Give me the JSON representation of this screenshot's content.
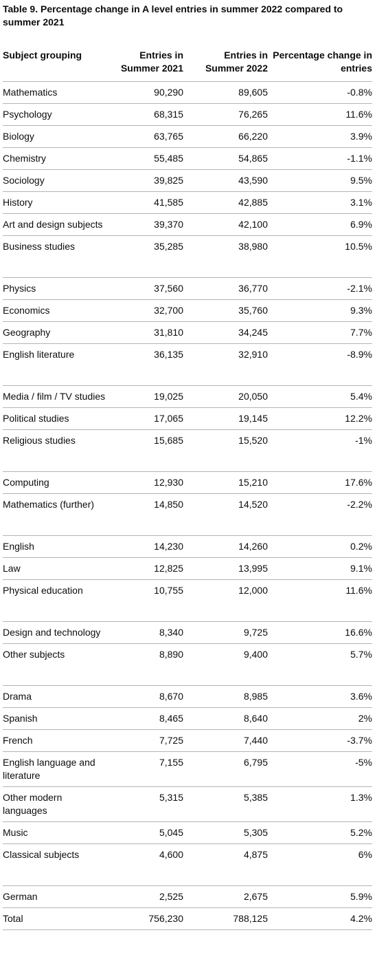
{
  "caption": "Table 9. Percentage change in A level entries in summer 2022 compared to summer 2021",
  "headers": {
    "subject": "Subject grouping",
    "entries_2021": "Entries in Summer 2021",
    "entries_2022": "Entries in Summer 2022",
    "pct_change": "Percentage change in entries"
  },
  "rows": [
    {
      "subject": "Mathematics",
      "e2021": "90,290",
      "e2022": "89,605",
      "pct": "-0.8%"
    },
    {
      "subject": "Psychology",
      "e2021": "68,315",
      "e2022": "76,265",
      "pct": "11.6%"
    },
    {
      "subject": "Biology",
      "e2021": "63,765",
      "e2022": "66,220",
      "pct": "3.9%"
    },
    {
      "subject": "Chemistry",
      "e2021": "55,485",
      "e2022": "54,865",
      "pct": "-1.1%"
    },
    {
      "subject": "Sociology",
      "e2021": "39,825",
      "e2022": "43,590",
      "pct": "9.5%"
    },
    {
      "subject": "History",
      "e2021": "41,585",
      "e2022": "42,885",
      "pct": "3.1%"
    },
    {
      "subject": "Art and design subjects",
      "e2021": "39,370",
      "e2022": "42,100",
      "pct": "6.9%"
    },
    {
      "subject": "Business studies",
      "e2021": "35,285",
      "e2022": "38,980",
      "pct": "10.5%"
    },
    {
      "subject": "Physics",
      "e2021": "37,560",
      "e2022": "36,770",
      "pct": "-2.1%"
    },
    {
      "subject": "Economics",
      "e2021": "32,700",
      "e2022": "35,760",
      "pct": "9.3%"
    },
    {
      "subject": "Geography",
      "e2021": "31,810",
      "e2022": "34,245",
      "pct": "7.7%"
    },
    {
      "subject": "English literature",
      "e2021": "36,135",
      "e2022": "32,910",
      "pct": "-8.9%"
    },
    {
      "subject": "Media / film / TV studies",
      "e2021": "19,025",
      "e2022": "20,050",
      "pct": "5.4%"
    },
    {
      "subject": "Political studies",
      "e2021": "17,065",
      "e2022": "19,145",
      "pct": "12.2%"
    },
    {
      "subject": "Religious studies",
      "e2021": "15,685",
      "e2022": "15,520",
      "pct": "-1%"
    },
    {
      "subject": "Computing",
      "e2021": "12,930",
      "e2022": "15,210",
      "pct": "17.6%"
    },
    {
      "subject": "Mathematics (further)",
      "e2021": "14,850",
      "e2022": "14,520",
      "pct": "-2.2%"
    },
    {
      "subject": "English",
      "e2021": "14,230",
      "e2022": "14,260",
      "pct": "0.2%"
    },
    {
      "subject": "Law",
      "e2021": "12,825",
      "e2022": "13,995",
      "pct": "9.1%"
    },
    {
      "subject": "Physical education",
      "e2021": "10,755",
      "e2022": "12,000",
      "pct": "11.6%"
    },
    {
      "subject": "Design and technology",
      "e2021": "8,340",
      "e2022": "9,725",
      "pct": "16.6%"
    },
    {
      "subject": "Other subjects",
      "e2021": "8,890",
      "e2022": "9,400",
      "pct": "5.7%"
    },
    {
      "subject": "Drama",
      "e2021": "8,670",
      "e2022": "8,985",
      "pct": "3.6%"
    },
    {
      "subject": "Spanish",
      "e2021": "8,465",
      "e2022": "8,640",
      "pct": "2%"
    },
    {
      "subject": "French",
      "e2021": "7,725",
      "e2022": "7,440",
      "pct": "-3.7%"
    },
    {
      "subject": "English language and literature",
      "e2021": "7,155",
      "e2022": "6,795",
      "pct": "-5%"
    },
    {
      "subject": "Other modern languages",
      "e2021": "5,315",
      "e2022": "5,385",
      "pct": "1.3%"
    },
    {
      "subject": "Music",
      "e2021": "5,045",
      "e2022": "5,305",
      "pct": "5.2%"
    },
    {
      "subject": "Classical subjects",
      "e2021": "4,600",
      "e2022": "4,875",
      "pct": "6%"
    },
    {
      "subject": "German",
      "e2021": "2,525",
      "e2022": "2,675",
      "pct": "5.9%"
    },
    {
      "subject": "Total",
      "e2021": "756,230",
      "e2022": "788,125",
      "pct": "4.2%"
    }
  ]
}
